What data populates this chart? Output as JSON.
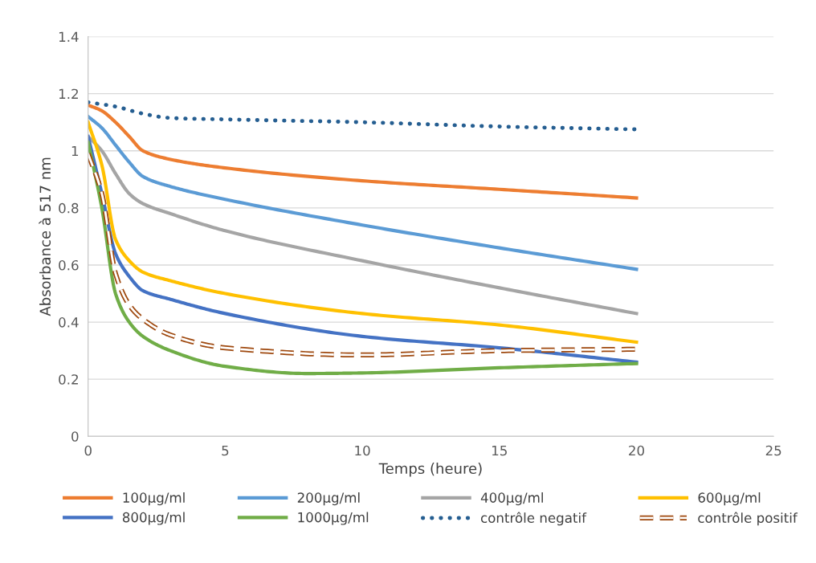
{
  "chart_data": {
    "type": "line",
    "xlabel": "Temps (heure)",
    "ylabel": "Absorbance à 517 nm",
    "xlim": [
      0,
      25
    ],
    "xticks": [
      0,
      5,
      10,
      15,
      20,
      25
    ],
    "ylim": [
      0,
      1.4
    ],
    "yticks": [
      0,
      {
        "value": 0.2,
        "label": "0.2"
      },
      {
        "value": 0.4,
        "label": "0.4"
      },
      {
        "value": 0.6,
        "label": "0.6"
      },
      {
        "value": 0.8,
        "label": "0.8"
      },
      1,
      {
        "value": 1.2,
        "label": "1.2"
      },
      {
        "value": 1.4,
        "label": "1.4"
      }
    ],
    "grid": "y",
    "legend": "bottom",
    "marker": "none",
    "series": [
      {
        "name": "100µg/ml",
        "color": "#ed7d31",
        "line_style": "solid",
        "x": [
          0,
          0.5,
          1,
          1.5,
          2,
          3,
          5,
          10,
          15,
          20
        ],
        "values": [
          1.16,
          1.14,
          1.1,
          1.05,
          1.0,
          0.97,
          0.94,
          0.895,
          0.865,
          0.835
        ]
      },
      {
        "name": "200µg/ml",
        "color": "#5b9bd5",
        "line_style": "solid",
        "x": [
          0,
          0.5,
          1,
          1.5,
          2,
          3,
          5,
          10,
          15,
          20
        ],
        "values": [
          1.12,
          1.08,
          1.02,
          0.96,
          0.91,
          0.875,
          0.83,
          0.74,
          0.66,
          0.585
        ]
      },
      {
        "name": "400µg/ml",
        "color": "#a5a5a5",
        "line_style": "solid",
        "x": [
          0,
          0.5,
          1,
          1.5,
          2,
          3,
          5,
          10,
          15,
          20
        ],
        "values": [
          1.05,
          1.0,
          0.92,
          0.85,
          0.815,
          0.78,
          0.72,
          0.615,
          0.52,
          0.43
        ]
      },
      {
        "name": "600µg/ml",
        "color": "#ffc000",
        "line_style": "solid",
        "x": [
          0,
          0.5,
          1,
          1.5,
          2,
          3,
          5,
          10,
          15,
          20
        ],
        "values": [
          1.1,
          0.95,
          0.69,
          0.615,
          0.575,
          0.545,
          0.5,
          0.43,
          0.39,
          0.33
        ]
      },
      {
        "name": "800µg/ml",
        "color": "#4472c4",
        "line_style": "solid",
        "x": [
          0,
          0.5,
          1,
          1.5,
          2,
          3,
          5,
          10,
          15,
          20
        ],
        "values": [
          1.05,
          0.85,
          0.64,
          0.56,
          0.51,
          0.48,
          0.43,
          0.35,
          0.31,
          0.26
        ]
      },
      {
        "name": "1000µg/ml",
        "color": "#70ad47",
        "line_style": "solid",
        "x": [
          0,
          0.5,
          1,
          1.5,
          2,
          3,
          5,
          8,
          10,
          15,
          20
        ],
        "values": [
          1.03,
          0.8,
          0.5,
          0.4,
          0.35,
          0.3,
          0.245,
          0.22,
          0.222,
          0.24,
          0.255
        ]
      },
      {
        "name": "contrôle negatif",
        "color": "#255e91",
        "line_style": "dotted",
        "x": [
          0,
          1,
          2,
          3,
          5,
          10,
          15,
          20
        ],
        "values": [
          1.17,
          1.155,
          1.13,
          1.115,
          1.11,
          1.1,
          1.085,
          1.075
        ]
      },
      {
        "name": "contrôle positif",
        "color": "#9e480e",
        "line_style": "dashed",
        "x": [
          0,
          0.5,
          1,
          1.5,
          2,
          3,
          5,
          10,
          15,
          20
        ],
        "values": [
          0.99,
          0.85,
          0.57,
          0.46,
          0.41,
          0.355,
          0.31,
          0.285,
          0.3,
          0.305
        ]
      }
    ]
  }
}
